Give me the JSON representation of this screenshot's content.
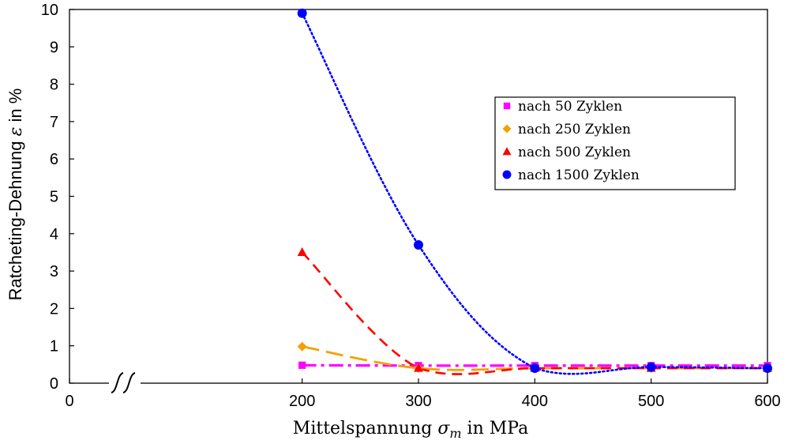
{
  "chart_data": {
    "type": "line",
    "ylabel_prefix": "Ratcheting-Dehnung ",
    "ylabel_symbol": "ε",
    "ylabel_suffix": " in %",
    "xlabel_prefix": "Mittelspannung ",
    "xlabel_symbol": "σ",
    "xlabel_subscript": "m",
    "xlabel_suffix": " in MPa",
    "xlim": [
      0,
      600
    ],
    "ylim": [
      0,
      10
    ],
    "xticks": [
      "0",
      "200",
      "300",
      "400",
      "500",
      "600"
    ],
    "yticks": [
      "0",
      "1",
      "2",
      "3",
      "4",
      "5",
      "6",
      "7",
      "8",
      "9",
      "10"
    ],
    "axis_break": "between 0 and 200",
    "grid": false,
    "legend_position": "right",
    "series": [
      {
        "name": "nach 50 Zyklen",
        "marker": "square",
        "color": "#FF00FF",
        "line_style": "dash-dot",
        "x": [
          200,
          300,
          400,
          500,
          600
        ],
        "y": [
          0.48,
          0.47,
          0.47,
          0.47,
          0.47
        ]
      },
      {
        "name": "nach 250 Zyklen",
        "marker": "diamond",
        "color": "#F5A000",
        "line_style": "long-dash",
        "x": [
          200,
          300,
          400,
          500,
          600
        ],
        "y": [
          0.98,
          0.4,
          0.4,
          0.4,
          0.4
        ]
      },
      {
        "name": "nach 500 Zyklen",
        "marker": "triangle",
        "color": "#FF0000",
        "line_style": "dash",
        "x": [
          200,
          300,
          400,
          500,
          600
        ],
        "y": [
          3.5,
          0.4,
          0.4,
          0.4,
          0.4
        ]
      },
      {
        "name": "nach 1500 Zyklen",
        "marker": "circle",
        "color": "#0000FF",
        "line_style": "dotted",
        "x": [
          200,
          300,
          400,
          500,
          600
        ],
        "y": [
          9.9,
          3.7,
          0.4,
          0.43,
          0.4
        ]
      }
    ]
  }
}
